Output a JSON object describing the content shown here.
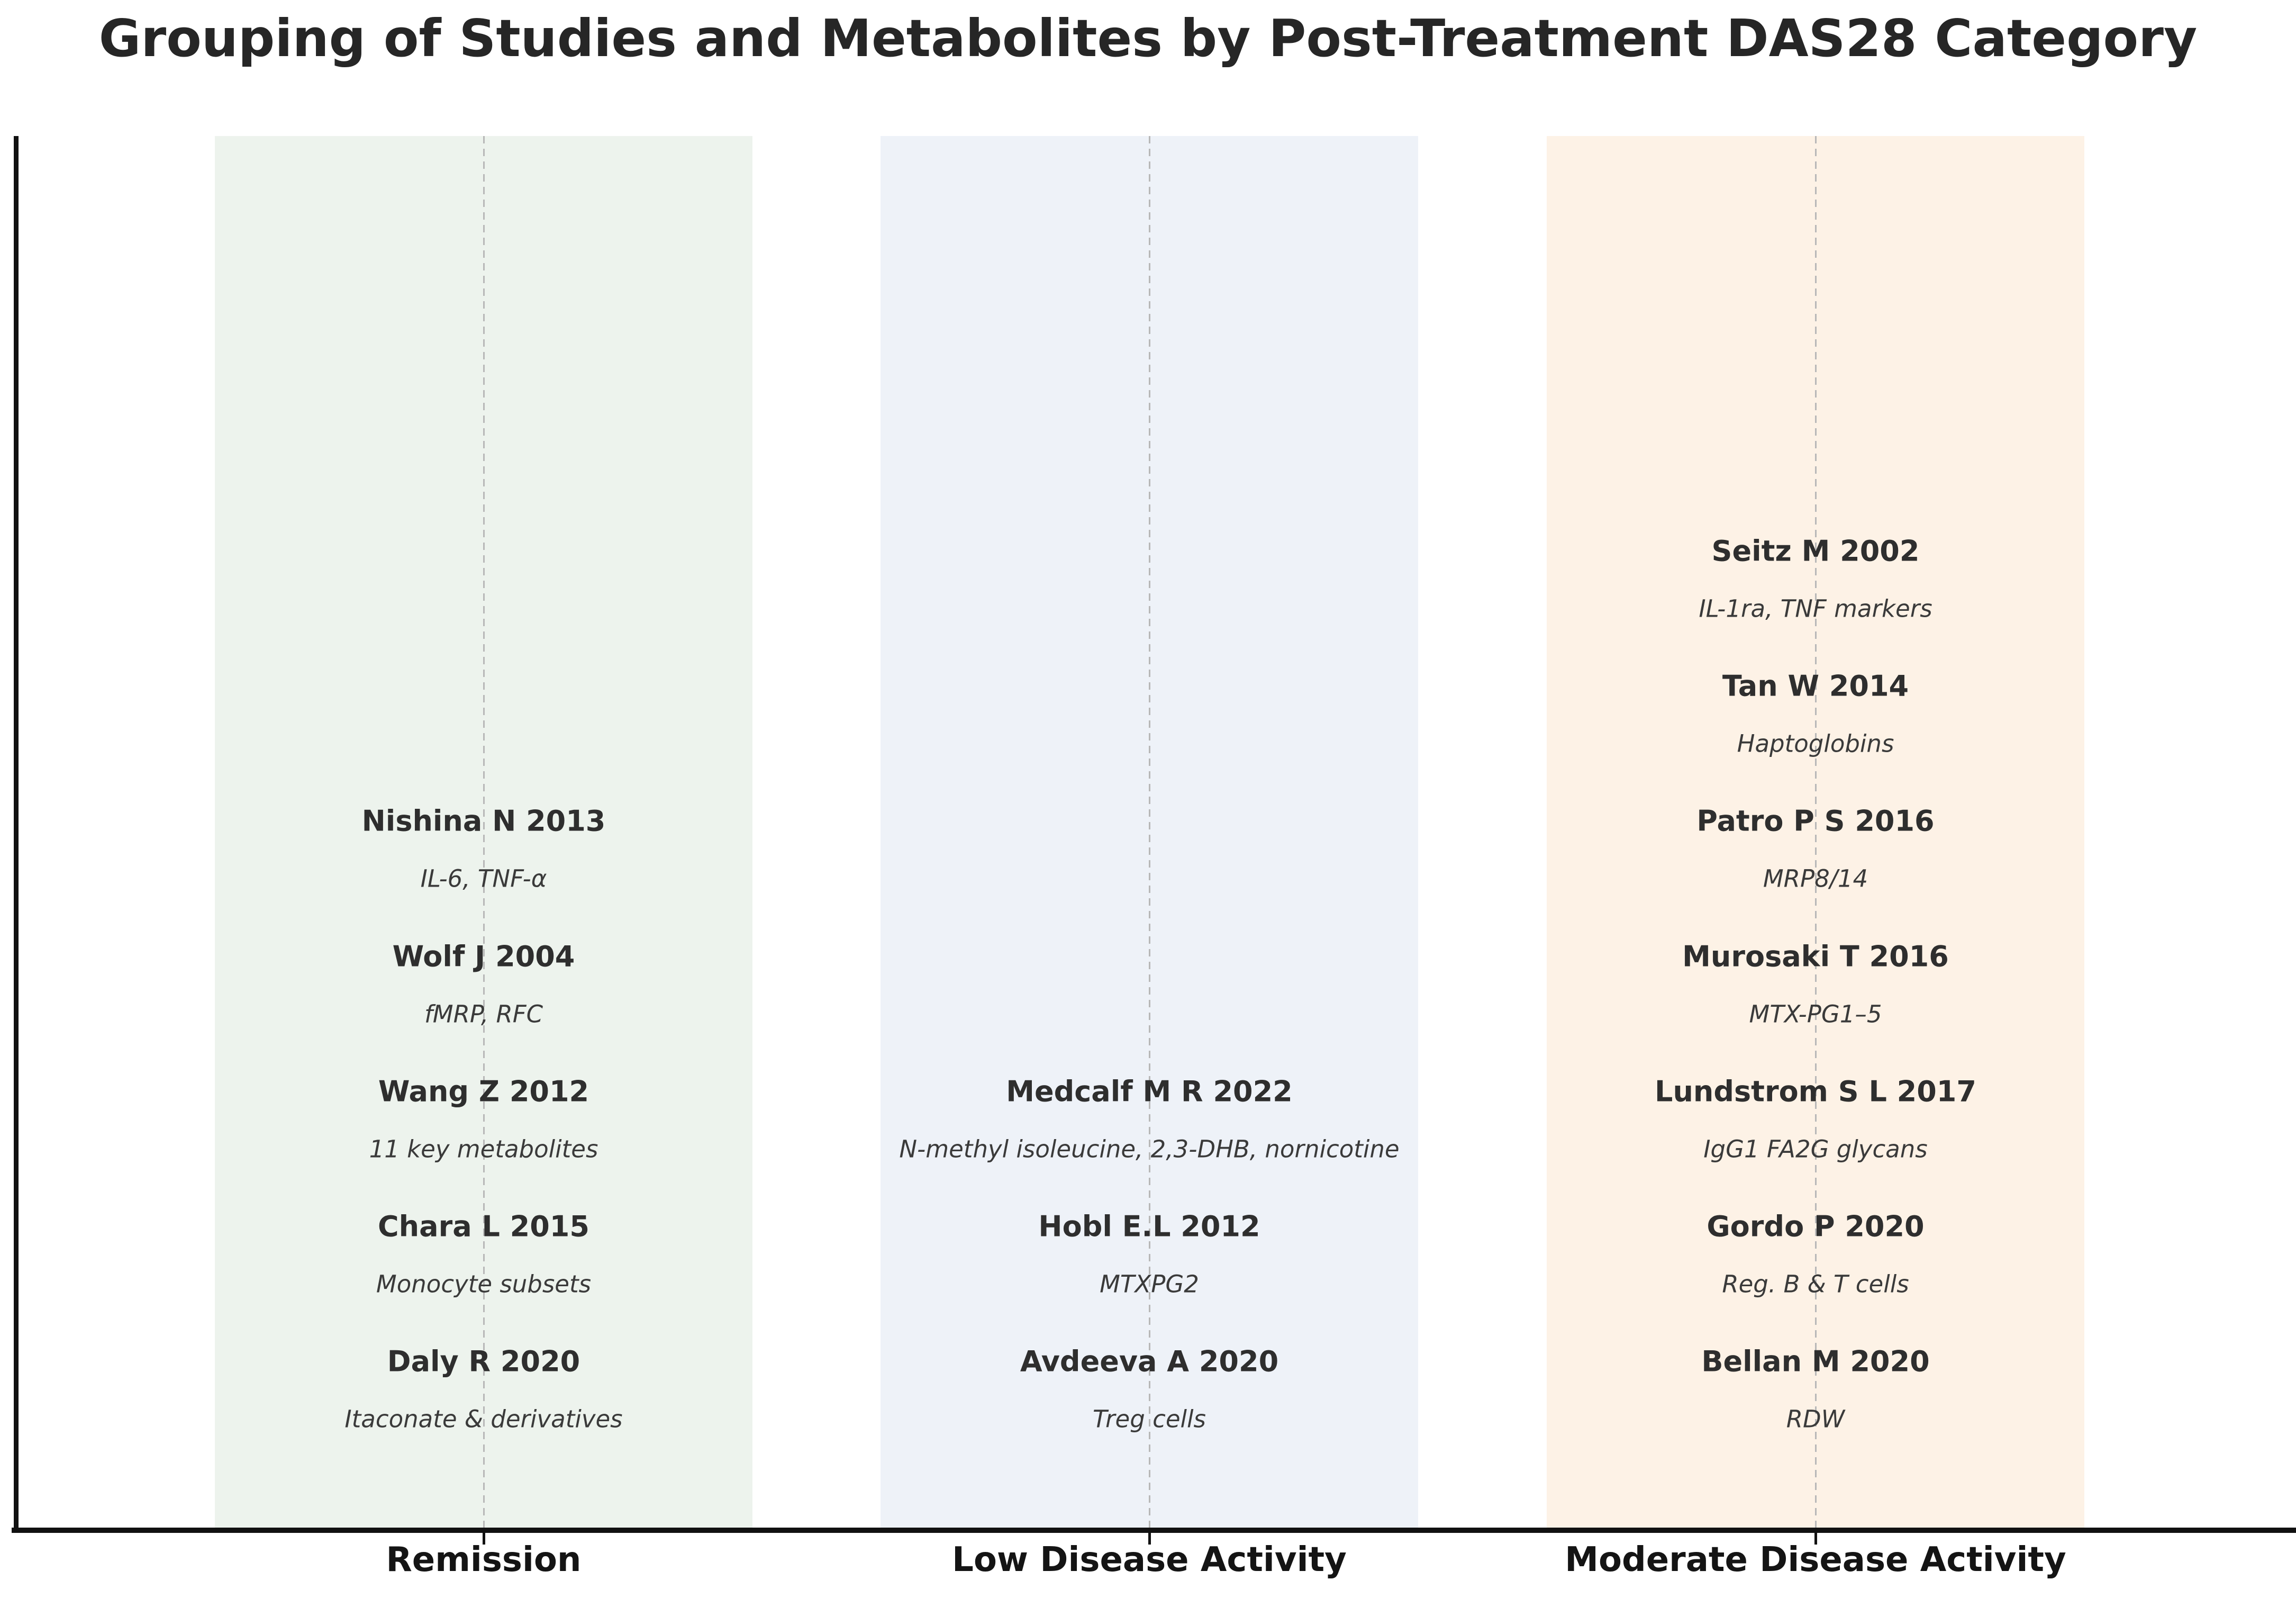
{
  "chart_data": {
    "type": "table",
    "title": "Grouping of Studies and Metabolites by Post-Treatment DAS28 Category",
    "categories": [
      "Remission",
      "Low Disease Activity",
      "Moderate Disease Activity"
    ],
    "legend": null,
    "layout_hints": {
      "grid": false,
      "column_guides": "dashed vertical line at each category center",
      "bands": "one shaded vertical band per category",
      "x_axis": "category labels below bottom spine",
      "y_axis": "unlabeled left spine"
    },
    "columns": [
      {
        "label": "Remission",
        "band_color": "#edf3ed",
        "entries": [
          {
            "study": "Nishina N 2013",
            "metabolites": "IL-6, TNF-α",
            "row": 3
          },
          {
            "study": "Wolf J 2004",
            "metabolites": "fMRP, RFC",
            "row": 4
          },
          {
            "study": "Wang Z 2012",
            "metabolites": "11 key metabolites",
            "row": 5
          },
          {
            "study": "Chara L 2015",
            "metabolites": "Monocyte subsets",
            "row": 6
          },
          {
            "study": "Daly R 2020",
            "metabolites": "Itaconate & derivatives",
            "row": 7
          }
        ]
      },
      {
        "label": "Low Disease Activity",
        "band_color": "#eef2f8",
        "entries": [
          {
            "study": "Medcalf M R 2022",
            "metabolites": "N-methyl isoleucine, 2,3-DHB, nornicotine",
            "row": 5
          },
          {
            "study": "Hobl E.L 2012",
            "metabolites": "MTXPG2",
            "row": 6
          },
          {
            "study": "Avdeeva A 2020",
            "metabolites": "Treg cells",
            "row": 7
          }
        ]
      },
      {
        "label": "Moderate Disease Activity",
        "band_color": "#fdf2e6",
        "entries": [
          {
            "study": "Seitz M 2002",
            "metabolites": "IL-1ra, TNF markers",
            "row": 1
          },
          {
            "study": "Tan W 2014",
            "metabolites": "Haptoglobins",
            "row": 2
          },
          {
            "study": "Patro P S 2016",
            "metabolites": "MRP8/14",
            "row": 3
          },
          {
            "study": "Murosaki T 2016",
            "metabolites": "MTX-PG1–5",
            "row": 4
          },
          {
            "study": "Lundstrom S L 2017",
            "metabolites": "IgG1 FA2G glycans",
            "row": 5
          },
          {
            "study": "Gordo P 2020",
            "metabolites": "Reg. B & T cells",
            "row": 6
          },
          {
            "study": "Bellan M 2020",
            "metabolites": "RDW",
            "row": 7
          }
        ]
      }
    ],
    "axis_colors": {
      "spine": "#111111",
      "guide_dash": "#b8b8b8"
    }
  }
}
